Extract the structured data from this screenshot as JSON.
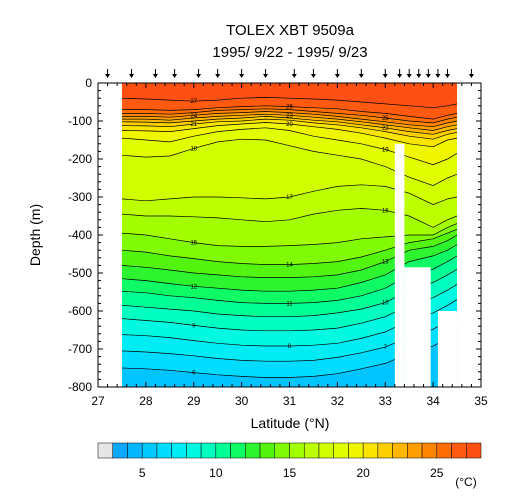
{
  "chart_data": {
    "type": "heatmap",
    "title": "TOLEX XBT 9509a",
    "subtitle": "1995/ 9/22 - 1995/ 9/23",
    "xlabel": "Latitude (°N)",
    "ylabel": "Depth (m)",
    "xlim": [
      27,
      35
    ],
    "ylim": [
      -800,
      0
    ],
    "x_ticks": [
      "27",
      "28",
      "29",
      "30",
      "31",
      "32",
      "33",
      "34",
      "35"
    ],
    "y_ticks": [
      "0",
      "-100",
      "-200",
      "-300",
      "-400",
      "-500",
      "-600",
      "-700",
      "-800"
    ],
    "colorbar": {
      "unit": "(°C)",
      "min": 2,
      "max": 28,
      "ticks": [
        "5",
        "10",
        "15",
        "20",
        "25"
      ],
      "colors": [
        "#1e90ff",
        "#00bfff",
        "#00e5ff",
        "#00ffd5",
        "#00ff80",
        "#33ff00",
        "#a0ff00",
        "#ccff00",
        "#ffff00",
        "#ffcc00",
        "#ff9900",
        "#ff6600",
        "#ff3300"
      ]
    },
    "station_latitudes": [
      27.2,
      27.7,
      28.2,
      28.6,
      29.1,
      29.5,
      30.0,
      30.5,
      31.1,
      31.5,
      32.0,
      32.5,
      33.0,
      33.3,
      33.5,
      33.7,
      33.9,
      34.1,
      34.3,
      34.8
    ],
    "field_extent_lat": [
      27.5,
      34.5
    ],
    "isotherm_labels": [
      "5",
      "7",
      "9",
      "10",
      "11",
      "12",
      "13",
      "14",
      "15",
      "16",
      "17",
      "18",
      "19",
      "20",
      "21",
      "22",
      "23",
      "24",
      "25",
      "26"
    ],
    "isotherms": [
      {
        "temp": 27,
        "depth": [
          -40,
          -42,
          -45,
          -48,
          -45,
          -40,
          -38,
          -40,
          -42,
          -45,
          -50,
          -55,
          -60,
          -65,
          -60,
          -55
        ]
      },
      {
        "temp": 26,
        "depth": [
          -70,
          -70,
          -72,
          -70,
          -65,
          -62,
          -60,
          -62,
          -65,
          -68,
          -75,
          -80,
          -88,
          -95,
          -85,
          -80
        ]
      },
      {
        "temp": 25,
        "depth": [
          -80,
          -80,
          -82,
          -78,
          -72,
          -70,
          -68,
          -70,
          -75,
          -80,
          -85,
          -92,
          -100,
          -105,
          -95,
          -90
        ]
      },
      {
        "temp": 24,
        "depth": [
          -88,
          -88,
          -90,
          -85,
          -80,
          -78,
          -75,
          -78,
          -82,
          -88,
          -95,
          -102,
          -110,
          -115,
          -105,
          -100
        ]
      },
      {
        "temp": 23,
        "depth": [
          -95,
          -95,
          -98,
          -92,
          -88,
          -85,
          -82,
          -85,
          -90,
          -95,
          -102,
          -110,
          -118,
          -125,
          -115,
          -110
        ]
      },
      {
        "temp": 22,
        "depth": [
          -102,
          -103,
          -105,
          -100,
          -95,
          -92,
          -88,
          -92,
          -98,
          -102,
          -110,
          -118,
          -128,
          -135,
          -125,
          -120
        ]
      },
      {
        "temp": 21,
        "depth": [
          -112,
          -113,
          -115,
          -108,
          -102,
          -100,
          -95,
          -98,
          -105,
          -110,
          -118,
          -128,
          -140,
          -148,
          -135,
          -130
        ]
      },
      {
        "temp": 20,
        "depth": [
          -125,
          -126,
          -128,
          -120,
          -112,
          -108,
          -104,
          -108,
          -115,
          -122,
          -132,
          -145,
          -160,
          -168,
          -150,
          -145
        ]
      },
      {
        "temp": 19,
        "depth": [
          -145,
          -150,
          -155,
          -140,
          -128,
          -122,
          -118,
          -125,
          -140,
          -150,
          -160,
          -175,
          -195,
          -215,
          -200,
          -185
        ]
      },
      {
        "temp": 18,
        "depth": [
          -190,
          -195,
          -192,
          -172,
          -155,
          -148,
          -150,
          -165,
          -180,
          -190,
          -200,
          -220,
          -248,
          -270,
          -250,
          -240
        ]
      },
      {
        "temp": 17,
        "depth": [
          -305,
          -310,
          -305,
          -300,
          -300,
          -302,
          -305,
          -300,
          -285,
          -272,
          -268,
          -272,
          -290,
          -320,
          -305,
          -300
        ]
      },
      {
        "temp": 16,
        "depth": [
          -345,
          -350,
          -350,
          -352,
          -355,
          -360,
          -365,
          -360,
          -345,
          -335,
          -330,
          -335,
          -350,
          -380,
          -360,
          -350
        ]
      },
      {
        "temp": 15,
        "depth": [
          -395,
          -400,
          -410,
          -420,
          -428,
          -430,
          -430,
          -428,
          -425,
          -420,
          -410,
          -405,
          -400,
          -400,
          -380,
          -370
        ]
      },
      {
        "temp": 14,
        "depth": [
          -440,
          -445,
          -455,
          -462,
          -470,
          -475,
          -478,
          -478,
          -475,
          -470,
          -458,
          -440,
          -420,
          -410,
          -395,
          -385
        ]
      },
      {
        "temp": 13,
        "depth": [
          -480,
          -485,
          -492,
          -500,
          -505,
          -510,
          -512,
          -512,
          -510,
          -505,
          -492,
          -470,
          -440,
          -430,
          -415,
          -400
        ]
      },
      {
        "temp": 12,
        "depth": [
          -515,
          -520,
          -528,
          -535,
          -540,
          -545,
          -548,
          -548,
          -545,
          -540,
          -525,
          -505,
          -470,
          -455,
          -440,
          -425
        ]
      },
      {
        "temp": 11,
        "depth": [
          -548,
          -552,
          -560,
          -565,
          -572,
          -578,
          -580,
          -580,
          -578,
          -572,
          -560,
          -540,
          -505,
          -490,
          -470,
          -455
        ]
      },
      {
        "temp": 10,
        "depth": [
          -585,
          -590,
          -595,
          -600,
          -608,
          -612,
          -615,
          -615,
          -612,
          -605,
          -595,
          -578,
          -545,
          -525,
          -505,
          -490
        ]
      },
      {
        "temp": 9,
        "depth": [
          -620,
          -625,
          -630,
          -638,
          -645,
          -650,
          -652,
          -652,
          -650,
          -645,
          -632,
          -615,
          -585,
          -565,
          -545,
          -530
        ]
      },
      {
        "temp": 8,
        "depth": [
          -662,
          -665,
          -670,
          -678,
          -685,
          -690,
          -692,
          -692,
          -690,
          -685,
          -672,
          -655,
          -625,
          -605,
          -585,
          -570
        ]
      },
      {
        "temp": 7,
        "depth": [
          -705,
          -708,
          -712,
          -718,
          -725,
          -730,
          -732,
          -732,
          -730,
          -722,
          -710,
          -695,
          -668,
          -648,
          -628,
          -612
        ]
      },
      {
        "temp": 6,
        "depth": [
          -750,
          -752,
          -756,
          -762,
          -768,
          -772,
          -775,
          -775,
          -772,
          -765,
          -752,
          -738,
          -712,
          -692,
          -672,
          -656
        ]
      }
    ],
    "isotherm_lats": [
      27.5,
      28.0,
      28.5,
      29.0,
      29.5,
      30.0,
      30.5,
      31.0,
      31.5,
      32.0,
      32.5,
      33.0,
      33.5,
      34.0,
      34.3,
      34.5
    ]
  }
}
